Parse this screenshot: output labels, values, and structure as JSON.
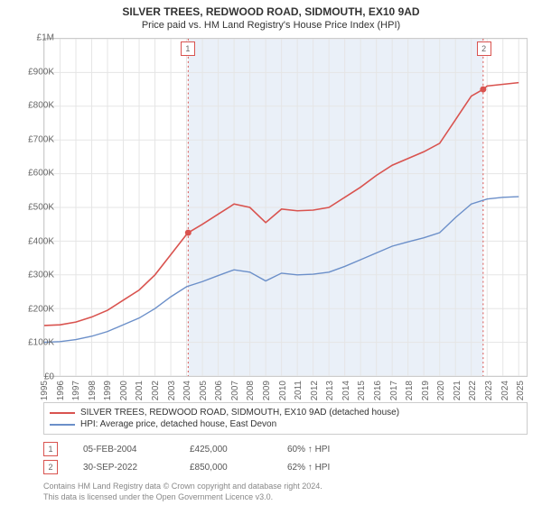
{
  "title": "SILVER TREES, REDWOOD ROAD, SIDMOUTH, EX10 9AD",
  "subtitle": "Price paid vs. HM Land Registry's House Price Index (HPI)",
  "chart": {
    "type": "line",
    "background_color": "#ffffff",
    "grid_color": "#e5e5e5",
    "shade_color": "#eaf0f8",
    "shade_x_range": [
      2004.1,
      2022.75
    ],
    "marker_line_color": "#d9534f",
    "marker_line_dash": "2,3",
    "xlim": [
      1995,
      2025.5
    ],
    "ylim": [
      0,
      1000000
    ],
    "ytick_step": 100000,
    "ytick_labels": [
      "£0",
      "£100K",
      "£200K",
      "£300K",
      "£400K",
      "£500K",
      "£600K",
      "£700K",
      "£800K",
      "£900K",
      "£1M"
    ],
    "xticks": [
      1995,
      1996,
      1997,
      1998,
      1999,
      2000,
      2001,
      2002,
      2003,
      2004,
      2005,
      2006,
      2007,
      2008,
      2009,
      2010,
      2011,
      2012,
      2013,
      2014,
      2015,
      2016,
      2017,
      2018,
      2019,
      2020,
      2021,
      2022,
      2023,
      2024,
      2025
    ],
    "title_fontsize": 12,
    "subtitle_fontsize": 11,
    "label_fontsize": 10,
    "series": [
      {
        "name": "SILVER TREES, REDWOOD ROAD, SIDMOUTH, EX10 9AD (detached house)",
        "color": "#d9534f",
        "line_width": 1.6,
        "x": [
          1995,
          1996,
          1997,
          1998,
          1999,
          2000,
          2001,
          2002,
          2003,
          2004,
          2004.1,
          2005,
          2006,
          2007,
          2008,
          2009,
          2010,
          2011,
          2012,
          2013,
          2014,
          2015,
          2016,
          2017,
          2018,
          2019,
          2020,
          2021,
          2022,
          2022.75,
          2023,
          2024,
          2025
        ],
        "y": [
          150000,
          152000,
          160000,
          175000,
          195000,
          225000,
          255000,
          300000,
          360000,
          420000,
          425000,
          450000,
          480000,
          510000,
          500000,
          455000,
          495000,
          490000,
          492000,
          500000,
          530000,
          560000,
          595000,
          625000,
          645000,
          665000,
          690000,
          760000,
          830000,
          850000,
          860000,
          865000,
          870000
        ]
      },
      {
        "name": "HPI: Average price, detached house, East Devon",
        "color": "#6b8fc9",
        "line_width": 1.4,
        "x": [
          1995,
          1996,
          1997,
          1998,
          1999,
          2000,
          2001,
          2002,
          2003,
          2004,
          2005,
          2006,
          2007,
          2008,
          2009,
          2010,
          2011,
          2012,
          2013,
          2014,
          2015,
          2016,
          2017,
          2018,
          2019,
          2020,
          2021,
          2022,
          2023,
          2024,
          2025
        ],
        "y": [
          100000,
          102000,
          108000,
          118000,
          132000,
          152000,
          172000,
          200000,
          235000,
          265000,
          280000,
          298000,
          315000,
          308000,
          282000,
          305000,
          300000,
          302000,
          308000,
          325000,
          345000,
          365000,
          385000,
          398000,
          410000,
          425000,
          470000,
          510000,
          525000,
          530000,
          532000
        ]
      }
    ],
    "markers": [
      {
        "n": 1,
        "x": 2004.1,
        "y": 425000
      },
      {
        "n": 2,
        "x": 2022.75,
        "y": 850000
      }
    ]
  },
  "legend": {
    "series1": "SILVER TREES, REDWOOD ROAD, SIDMOUTH, EX10 9AD (detached house)",
    "series2": "HPI: Average price, detached house, East Devon"
  },
  "sales": [
    {
      "n": "1",
      "date": "05-FEB-2004",
      "price": "£425,000",
      "delta": "60% ↑ HPI"
    },
    {
      "n": "2",
      "date": "30-SEP-2022",
      "price": "£850,000",
      "delta": "62% ↑ HPI"
    }
  ],
  "copyright": {
    "line1": "Contains HM Land Registry data © Crown copyright and database right 2024.",
    "line2": "This data is licensed under the Open Government Licence v3.0."
  }
}
